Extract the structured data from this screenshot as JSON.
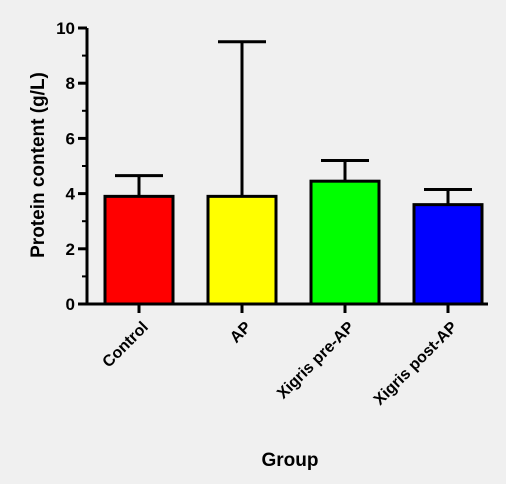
{
  "chart_data": {
    "type": "bar",
    "categories": [
      "Control",
      "AP",
      "Xigris pre-AP",
      "Xigris post-AP"
    ],
    "values": [
      3.9,
      3.9,
      4.45,
      3.6
    ],
    "error_upper": [
      4.65,
      9.5,
      5.2,
      4.15
    ],
    "colors": [
      "#ff0000",
      "#ffff00",
      "#00ff00",
      "#0000ff"
    ],
    "xlabel": "Group",
    "ylabel": "Protein content (g/L)",
    "ylim": [
      0,
      10
    ],
    "yticks": [
      "0",
      "2",
      "4",
      "6",
      "8",
      "10"
    ],
    "grid": false,
    "background": "#f0f0f0"
  }
}
